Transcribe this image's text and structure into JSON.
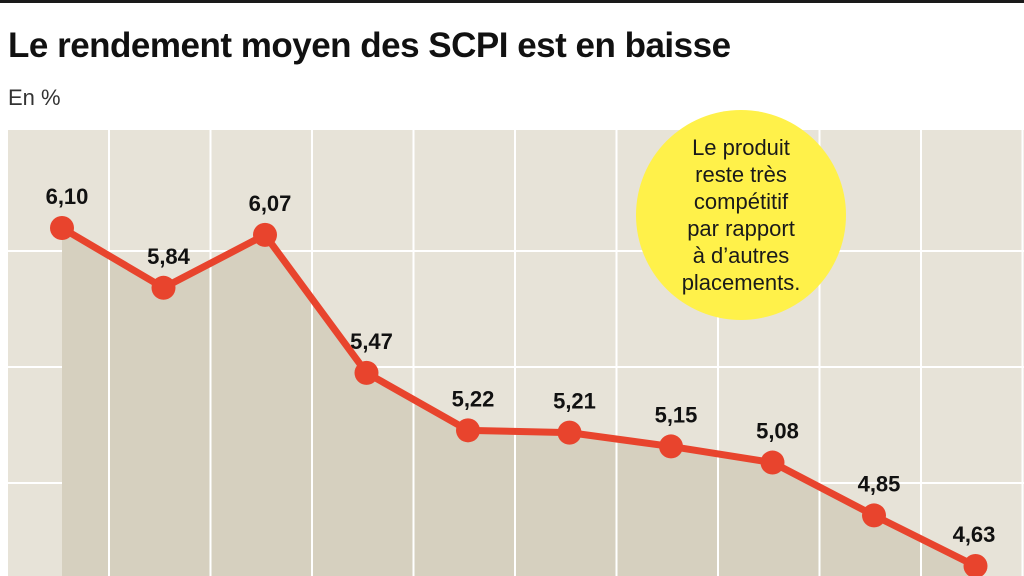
{
  "title": "Le rendement moyen des SCPI est en baisse",
  "subtitle": "En %",
  "callout": {
    "text": "Le produit\nreste très\ncompétitif\npar rapport\nà d’autres\nplacements."
  },
  "colors": {
    "line": "#e8442d",
    "area": "#d6d0bf",
    "background": "#e7e3d8",
    "grid": "#ffffff",
    "callout": "#fff14a"
  },
  "chart_data": {
    "type": "area",
    "x": [
      1,
      2,
      3,
      4,
      5,
      6,
      7,
      8,
      9,
      10
    ],
    "values": [
      6.1,
      5.84,
      6.07,
      5.47,
      5.22,
      5.21,
      5.15,
      5.08,
      4.85,
      4.63
    ],
    "labels": [
      "6,10",
      "5,84",
      "6,07",
      "5,47",
      "5,22",
      "5,21",
      "5,15",
      "5,08",
      "4,85",
      "4,63"
    ],
    "grid": true
  }
}
